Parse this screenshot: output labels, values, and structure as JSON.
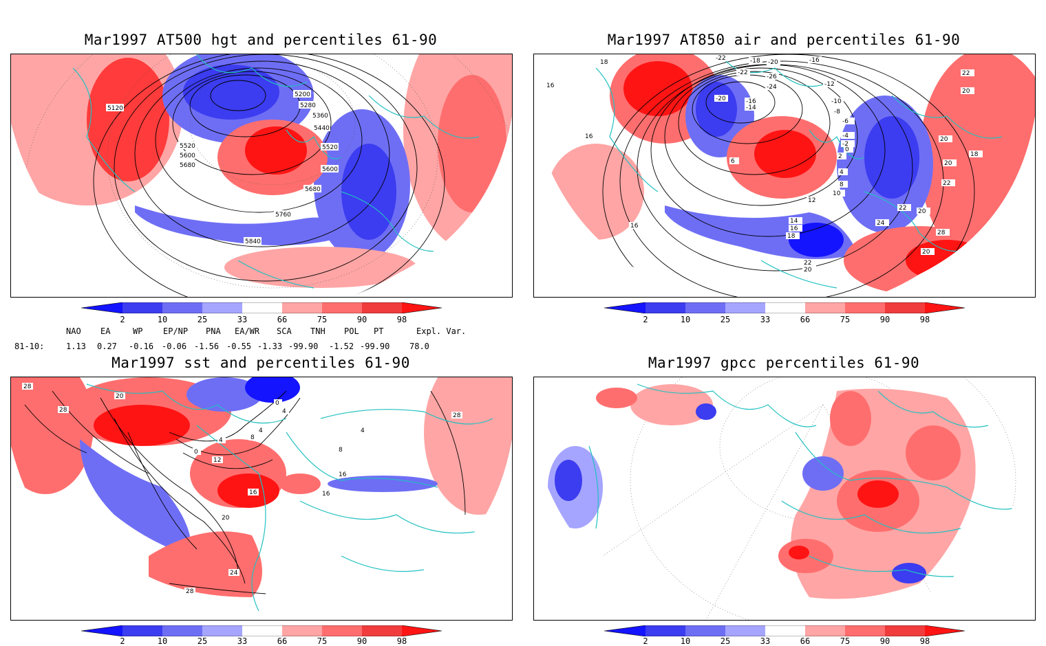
{
  "panels": [
    {
      "id": "hgt",
      "title": "Mar1997 AT500 hgt and percentiles 61-90",
      "contour_labels": [
        "5120",
        "5200",
        "5280",
        "5360",
        "5440",
        "5520",
        "5520",
        "5600",
        "5680",
        "5600",
        "5680",
        "5760",
        "5840"
      ]
    },
    {
      "id": "air",
      "title": "Mar1997 AT850 air and percentiles 61-90",
      "contour_labels": [
        "-22",
        "-18",
        "-20",
        "-16",
        "-22",
        "-26",
        "-24",
        "-12",
        "-20",
        "-16",
        "-14",
        "-10",
        "-8",
        "-6",
        "-4",
        "-2",
        "0",
        "2",
        "4",
        "6",
        "8",
        "10",
        "12",
        "14",
        "16",
        "18",
        "20",
        "22",
        "24",
        "28",
        "22",
        "20",
        "18",
        "16",
        "16",
        "16",
        "18",
        "20",
        "20",
        "22",
        "20",
        "22",
        "20"
      ]
    },
    {
      "id": "sst",
      "title": "Mar1997 sst and percentiles 61-90",
      "contour_labels": [
        "28",
        "28",
        "20",
        "0",
        "4",
        "8",
        "12",
        "16",
        "4",
        "0",
        "4",
        "8",
        "16",
        "16",
        "20",
        "24",
        "28",
        "28",
        "4"
      ]
    },
    {
      "id": "gpcc",
      "title": "Mar1997 gpcc percentiles 61-90",
      "contour_labels": []
    }
  ],
  "colorbar": {
    "labels": [
      "2",
      "10",
      "25",
      "33",
      "66",
      "75",
      "90",
      "98"
    ],
    "colors": [
      "#1414ff",
      "#3c3cf0",
      "#6e6ef5",
      "#a5a5ff",
      "#ffffff",
      "#ffa5a5",
      "#ff6e6e",
      "#f03c3c",
      "#ff1414"
    ]
  },
  "indices": {
    "headers": [
      "NAO",
      "EA",
      "WP",
      "EP/NP",
      "PNA",
      "EA/WR",
      "SCA",
      "TNH",
      "POL",
      "PT",
      "Expl. Var."
    ],
    "row_label": "81-10:",
    "values": [
      "1.13",
      "0.27",
      "-0.16",
      "-0.06",
      "-1.56",
      "-0.55",
      "-1.33",
      "-99.90",
      "-1.52",
      "-99.90",
      "78.0"
    ]
  },
  "colors": {
    "coastline": "#20c0c0",
    "contour": "#000000",
    "warm": "#ff3b3b",
    "cold": "#3333ee"
  }
}
